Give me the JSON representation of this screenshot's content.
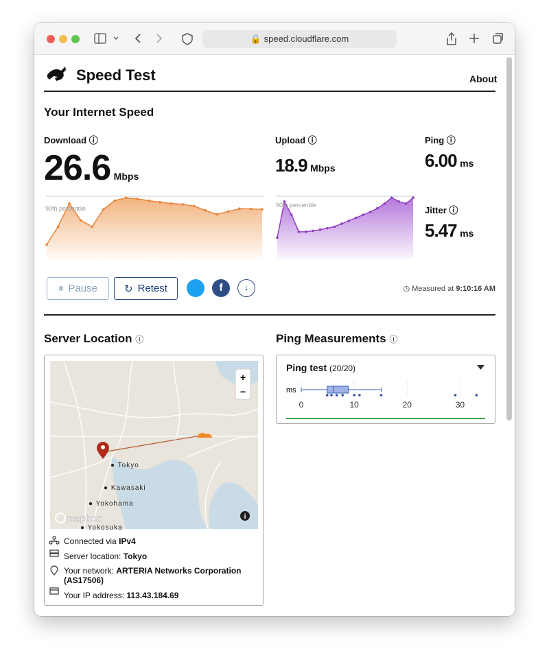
{
  "browser": {
    "url": "speed.cloudflare.com"
  },
  "header": {
    "title": "Speed Test",
    "nav": "About"
  },
  "speed": {
    "heading": "Your Internet Speed",
    "download": {
      "label": "Download",
      "value": "26.6",
      "unit": "Mbps",
      "percentile": "90th percentile",
      "ylim": [
        0,
        30
      ],
      "samples": [
        6.7,
        15,
        25.7,
        18,
        15,
        23,
        27,
        28.3,
        27.8,
        27,
        26.3,
        25.7,
        25.3,
        24.5,
        22.5,
        20.7,
        22,
        23.3,
        23.2,
        23
      ]
    },
    "upload": {
      "label": "Upload",
      "value": "18.9",
      "unit": "Mbps",
      "percentile": "90th percentile",
      "ylim": [
        0,
        22
      ],
      "samples": [
        7.3,
        19.5,
        15,
        9.3,
        9.3,
        9.6,
        10,
        10.5,
        11,
        12,
        13,
        14,
        15,
        16,
        17.2,
        18.8,
        20.8,
        19.5,
        18.8,
        20.8
      ]
    },
    "ping": {
      "label": "Ping",
      "value": "6.00",
      "unit": "ms"
    },
    "jitter": {
      "label": "Jitter",
      "value": "5.47",
      "unit": "ms"
    },
    "pause": "Pause",
    "retest": "Retest",
    "measured_label": "Measured at",
    "measured_time": "9:10:16 AM"
  },
  "server": {
    "heading": "Server Location",
    "places": [
      "Tokyo",
      "Kawasaki",
      "Yokohama",
      "Yokosuka"
    ],
    "attribution": "mapbox",
    "zoom_in": "+",
    "zoom_out": "−",
    "rows": [
      {
        "label": "Connected via",
        "value": "IPv4"
      },
      {
        "label": "Server location:",
        "value": "Tokyo"
      },
      {
        "label": "Your network:",
        "value": "ARTERIA Networks Corporation (AS17506)"
      },
      {
        "label": "Your IP address:",
        "value": "113.43.184.69"
      }
    ]
  },
  "ping_measurements": {
    "heading": "Ping Measurements",
    "title": "Ping test",
    "count": "(20/20)",
    "unit": "ms",
    "xlim": [
      0,
      35
    ],
    "xticks": [
      0,
      10,
      20,
      30
    ],
    "box": {
      "min": 0,
      "q1": 4.9,
      "median": 6.1,
      "q3": 8.9,
      "max": 15.1
    },
    "points": [
      4.9,
      5.7,
      6.7,
      7.8,
      10,
      11,
      15.1,
      29.1,
      33.1
    ]
  }
}
